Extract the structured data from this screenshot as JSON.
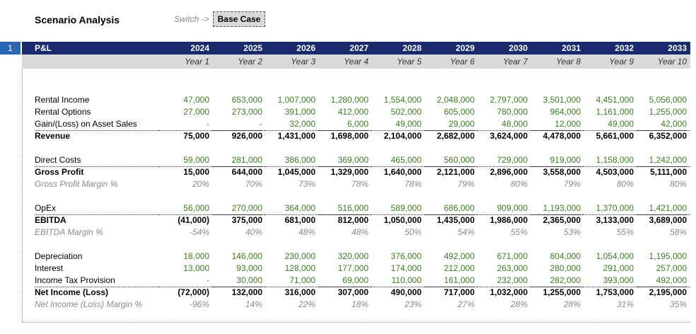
{
  "page": {
    "title": "Scenario Analysis",
    "switch_label": "Switch ->",
    "switch_value": "Base Case",
    "row_number": "1"
  },
  "table": {
    "header_label": "P&L",
    "years": [
      "2024",
      "2025",
      "2026",
      "2027",
      "2028",
      "2029",
      "2030",
      "2031",
      "2032",
      "2033"
    ],
    "year_index": [
      "Year 1",
      "Year 2",
      "Year 3",
      "Year 4",
      "Year 5",
      "Year 6",
      "Year 7",
      "Year 8",
      "Year 9",
      "Year 10"
    ],
    "rows": {
      "rental_income": {
        "label": "Rental Income",
        "values": [
          "47,000",
          "653,000",
          "1,007,000",
          "1,280,000",
          "1,554,000",
          "2,048,000",
          "2,797,000",
          "3,501,000",
          "4,451,000",
          "5,056,000"
        ]
      },
      "rental_options": {
        "label": "Rental Options",
        "values": [
          "27,000",
          "273,000",
          "391,000",
          "412,000",
          "502,000",
          "605,000",
          "780,000",
          "964,000",
          "1,161,000",
          "1,255,000"
        ]
      },
      "gain_loss": {
        "label": "Gain/(Loss) on Asset Sales",
        "values": [
          "-",
          "-",
          "32,000",
          "6,000",
          "49,000",
          "29,000",
          "48,000",
          "12,000",
          "49,000",
          "42,000"
        ]
      },
      "revenue": {
        "label": "Revenue",
        "values": [
          "75,000",
          "926,000",
          "1,431,000",
          "1,698,000",
          "2,104,000",
          "2,682,000",
          "3,624,000",
          "4,478,000",
          "5,661,000",
          "6,352,000"
        ]
      },
      "direct_costs": {
        "label": "Direct Costs",
        "values": [
          "59,000",
          "281,000",
          "386,000",
          "369,000",
          "465,000",
          "560,000",
          "729,000",
          "919,000",
          "1,158,000",
          "1,242,000"
        ]
      },
      "gross_profit": {
        "label": "Gross Profit",
        "values": [
          "15,000",
          "644,000",
          "1,045,000",
          "1,329,000",
          "1,640,000",
          "2,121,000",
          "2,896,000",
          "3,558,000",
          "4,503,000",
          "5,111,000"
        ]
      },
      "gross_margin": {
        "label": "Gross Profit Margin %",
        "values": [
          "20%",
          "70%",
          "73%",
          "78%",
          "78%",
          "79%",
          "80%",
          "79%",
          "80%",
          "80%"
        ]
      },
      "opex": {
        "label": "OpEx",
        "values": [
          "56,000",
          "270,000",
          "364,000",
          "516,000",
          "589,000",
          "686,000",
          "909,000",
          "1,193,000",
          "1,370,000",
          "1,421,000"
        ]
      },
      "ebitda": {
        "label": "EBITDA",
        "values": [
          "(41,000)",
          "375,000",
          "681,000",
          "812,000",
          "1,050,000",
          "1,435,000",
          "1,986,000",
          "2,365,000",
          "3,133,000",
          "3,689,000"
        ]
      },
      "ebitda_margin": {
        "label": "EBITDA Margin %",
        "values": [
          "-54%",
          "40%",
          "48%",
          "48%",
          "50%",
          "54%",
          "55%",
          "53%",
          "55%",
          "58%"
        ]
      },
      "depreciation": {
        "label": "Depreciation",
        "values": [
          "18,000",
          "146,000",
          "230,000",
          "320,000",
          "376,000",
          "492,000",
          "671,000",
          "804,000",
          "1,054,000",
          "1,195,000"
        ]
      },
      "interest": {
        "label": "Interest",
        "values": [
          "13,000",
          "93,000",
          "128,000",
          "177,000",
          "174,000",
          "212,000",
          "263,000",
          "280,000",
          "291,000",
          "257,000"
        ]
      },
      "tax": {
        "label": "Income Tax Provision",
        "values": [
          "-",
          "30,000",
          "71,000",
          "69,000",
          "110,000",
          "161,000",
          "232,000",
          "282,000",
          "393,000",
          "492,000"
        ]
      },
      "net_income": {
        "label": "Net Income (Loss)",
        "values": [
          "(72,000)",
          "132,000",
          "316,000",
          "307,000",
          "490,000",
          "717,000",
          "1,032,000",
          "1,255,000",
          "1,753,000",
          "2,195,000"
        ]
      },
      "net_margin": {
        "label": "Net Income (Loss) Margin %",
        "values": [
          "-96%",
          "14%",
          "22%",
          "18%",
          "23%",
          "27%",
          "28%",
          "28%",
          "31%",
          "35%"
        ]
      }
    }
  }
}
